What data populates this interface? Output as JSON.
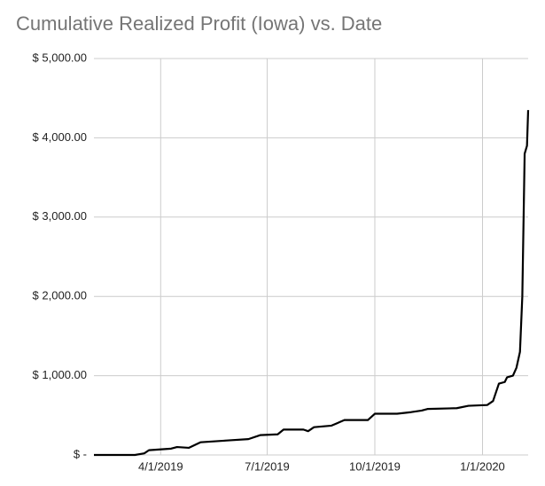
{
  "chart_data": {
    "type": "line",
    "title": "Cumulative Realized Profit (Iowa) vs. Date",
    "x": [
      "2/3/2019",
      "3/10/2019",
      "3/18/2019",
      "3/22/2019",
      "4/10/2019",
      "4/15/2019",
      "4/25/2019",
      "5/5/2019",
      "5/25/2019",
      "6/15/2019",
      "6/25/2019",
      "7/10/2019",
      "7/15/2019",
      "8/1/2019",
      "8/5/2019",
      "8/10/2019",
      "8/25/2019",
      "9/5/2019",
      "9/25/2019",
      "10/1/2019",
      "10/20/2019",
      "11/1/2019",
      "11/10/2019",
      "11/15/2019",
      "12/10/2019",
      "12/20/2019",
      "1/5/2020",
      "1/10/2020",
      "1/15/2020",
      "1/20/2020",
      "1/22/2020",
      "1/27/2020",
      "1/30/2020",
      "2/2/2020",
      "2/4/2020",
      "2/6/2020",
      "2/8/2020",
      "2/9/2020"
    ],
    "values": [
      0,
      0,
      20,
      60,
      80,
      100,
      90,
      160,
      180,
      200,
      250,
      260,
      320,
      320,
      300,
      350,
      370,
      440,
      440,
      520,
      520,
      540,
      560,
      580,
      590,
      620,
      630,
      680,
      900,
      920,
      980,
      1000,
      1100,
      1300,
      2000,
      3800,
      3900,
      4350
    ],
    "color": "#000000",
    "xlim": [
      "2/3/2019",
      "2/9/2020"
    ],
    "xticks": [
      "4/1/2019",
      "7/1/2019",
      "10/1/2019",
      "1/1/2020"
    ],
    "ylim": [
      0,
      5000
    ],
    "yticks": [
      {
        "value": 0,
        "label": "$ -"
      },
      {
        "value": 1000,
        "label": "$ 1,000.00"
      },
      {
        "value": 2000,
        "label": "$ 2,000.00"
      },
      {
        "value": 3000,
        "label": "$ 3,000.00"
      },
      {
        "value": 4000,
        "label": "$ 4,000.00"
      },
      {
        "value": 5000,
        "label": "$ 5,000.00"
      }
    ],
    "grid": true
  }
}
